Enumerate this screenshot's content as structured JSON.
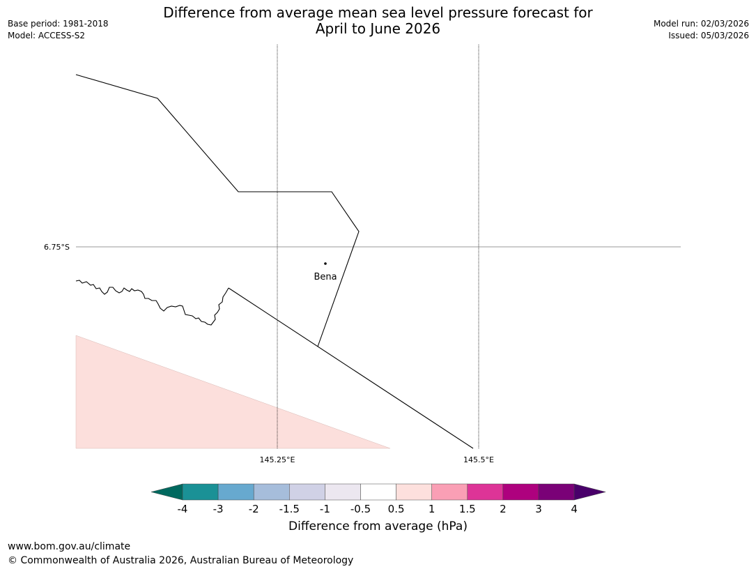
{
  "header": {
    "title_line1": "Difference from average mean sea level pressure forecast for",
    "title_line2": "April to June 2026",
    "base_period": "Base period: 1981-2018",
    "model": "Model: ACCESS-S2",
    "model_run": "Model run: 02/03/2026",
    "issued": "Issued: 05/03/2026"
  },
  "map": {
    "lat_label": "6.75°S",
    "lon_labels": [
      "145.25°E",
      "145.5°E"
    ],
    "place_label": "Bena",
    "fill_color": "#fcdfdc"
  },
  "colorbar": {
    "title": "Difference from average (hPa)",
    "tick_labels": [
      "-4",
      "-3",
      "-2",
      "-1.5",
      "-1",
      "-0.5",
      "0.5",
      "1",
      "1.5",
      "2",
      "3",
      "4"
    ],
    "colors": [
      "#00695f",
      "#1a9196",
      "#67a9cf",
      "#a6bddb",
      "#d0d1e6",
      "#ece7f0",
      "#ffffff",
      "#fde0dd",
      "#fa9fb5",
      "#dd3497",
      "#ae017e",
      "#7a0177",
      "#49006a"
    ]
  },
  "footer": {
    "url": "www.bom.gov.au/climate",
    "copyright": "© Commonwealth of Australia 2026, Australian Bureau of Meteorology"
  }
}
